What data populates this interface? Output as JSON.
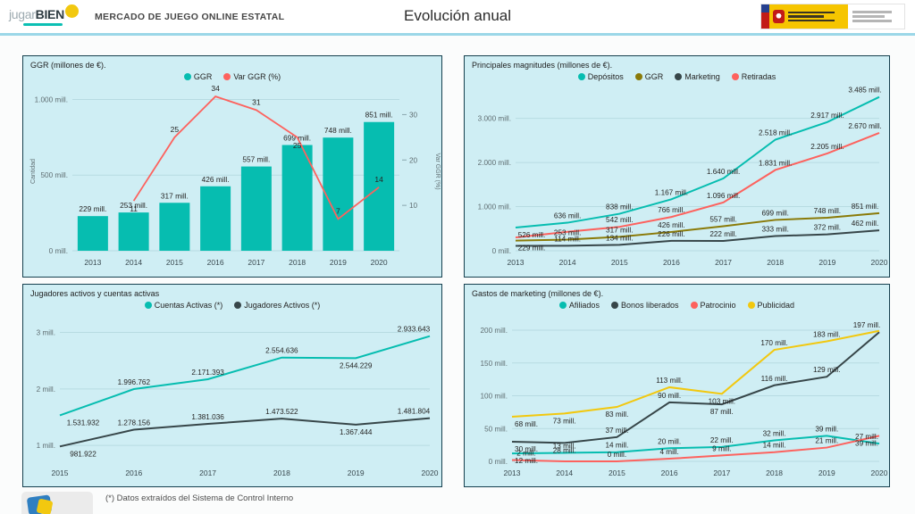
{
  "header": {
    "logo": {
      "part1": "jugar",
      "part2": "BIEN"
    },
    "title": "MERCADO DE JUEGO ONLINE ESTATAL",
    "page_title": "Evolución anual"
  },
  "footer": {
    "note": "(*) Datos extraídos del Sistema de Control Interno"
  },
  "colors": {
    "teal": "#06bdb0",
    "red": "#fd625e",
    "dark": "#374649",
    "yellow": "#f2c80f",
    "olive": "#8a7a08",
    "panel_bg": "#cfeef4",
    "grid": "#b7dbe2"
  },
  "chart_data": [
    {
      "type": "combo",
      "title": "GGR  (millones de €).",
      "categories": [
        "2013",
        "2014",
        "2015",
        "2016",
        "2017",
        "2018",
        "2019",
        "2020"
      ],
      "bar_series": {
        "name": "GGR",
        "color": "#06bdb0",
        "values": [
          229,
          253,
          317,
          426,
          557,
          699,
          748,
          851
        ],
        "labels": [
          "229 mill.",
          "253 mill.",
          "317 mill.",
          "426 mill.",
          "557 mill.",
          "699 mill.",
          "748 mill.",
          "851 mill."
        ]
      },
      "line_series": {
        "name": "Var GGR (%)",
        "color": "#fd625e",
        "values": [
          null,
          11,
          25,
          34,
          31,
          25,
          7,
          14
        ],
        "labels": [
          null,
          "11",
          "25",
          "34",
          "31",
          "25",
          "7",
          "14"
        ],
        "label_pos": [
          null,
          "b",
          "a",
          "a",
          "a",
          "b",
          "a",
          "a"
        ]
      },
      "y_left": {
        "title": "Cantidad",
        "min": 0,
        "max": 1050,
        "ticks": [
          {
            "v": 0,
            "label": "0 mill."
          },
          {
            "v": 500,
            "label": "500 mill."
          },
          {
            "v": 1000,
            "label": "1.000 mill."
          }
        ]
      },
      "y_right": {
        "title": "Var GGR (%)",
        "min": 0,
        "max": 35,
        "ticks": [
          {
            "v": 10,
            "label": "10"
          },
          {
            "v": 20,
            "label": "20"
          },
          {
            "v": 30,
            "label": "30"
          }
        ]
      }
    },
    {
      "type": "line",
      "title": "Principales magnitudes (millones de €).",
      "categories": [
        "2013",
        "2014",
        "2015",
        "2016",
        "2017",
        "2018",
        "2019",
        "2020"
      ],
      "series": [
        {
          "name": "Depósitos",
          "color": "#06bdb0",
          "values": [
            526,
            636,
            838,
            1167,
            1640,
            2518,
            2917,
            3485
          ],
          "labels": [
            "526 mill.",
            "636 mill.",
            "838 mill.",
            "1.167 mill.",
            "1.640 mill.",
            "2.518 mill.",
            "2.917 mill.",
            "3.485 mill."
          ],
          "label_pos": [
            "b",
            "a",
            "a",
            "a",
            "a",
            "a",
            "a",
            "a"
          ]
        },
        {
          "name": "GGR",
          "color": "#8a7a08",
          "values": [
            229,
            253,
            317,
            426,
            557,
            699,
            748,
            851
          ],
          "labels": [
            "229 mill.",
            "253 mill.",
            "317 mill.",
            "426 mill.",
            "557 mill.",
            "699 mill.",
            "748 mill.",
            "851 mill."
          ],
          "label_pos": [
            "b",
            "a",
            "a",
            "a",
            "a",
            "a",
            "a",
            "a"
          ]
        },
        {
          "name": "Marketing",
          "color": "#374649",
          "values": [
            112,
            114,
            134,
            226,
            222,
            333,
            372,
            462
          ],
          "labels": [
            null,
            "114 mill.",
            "134 mill.",
            "226 mill.",
            "222 mill.",
            "333 mill.",
            "372 mill.",
            "462 mill."
          ],
          "label_pos": [
            null,
            "a",
            "a",
            "a",
            "a",
            "a",
            "a",
            "a"
          ]
        },
        {
          "name": "Retiradas",
          "color": "#fd625e",
          "values": [
            300,
            430,
            542,
            766,
            1096,
            1831,
            2205,
            2670
          ],
          "labels": [
            null,
            null,
            "542 mill.",
            "766 mill.",
            "1.096 mill.",
            "1.831 mill.",
            "2.205 mill.",
            "2.670 mill."
          ],
          "label_pos": [
            null,
            null,
            "a",
            "a",
            "a",
            "a",
            "a",
            "a"
          ]
        }
      ],
      "y": {
        "min": 0,
        "max": 3600,
        "ticks": [
          {
            "v": 0,
            "label": "0 mill."
          },
          {
            "v": 1000,
            "label": "1.000 mill."
          },
          {
            "v": 2000,
            "label": "2.000 mill."
          },
          {
            "v": 3000,
            "label": "3.000 mill."
          }
        ]
      }
    },
    {
      "type": "line",
      "title": "Jugadores activos y cuentas activas",
      "categories": [
        "2015",
        "2016",
        "2017",
        "2018",
        "2019",
        "2020"
      ],
      "series": [
        {
          "name": "Cuentas Activas (*)",
          "color": "#06bdb0",
          "values": [
            1531932,
            1996762,
            2171393,
            2554636,
            2544229,
            2933643
          ],
          "labels": [
            "1.531.932",
            "1.996.762",
            "2.171.393",
            "2.554.636",
            "2.544.229",
            "2.933.643"
          ],
          "label_pos": [
            "b",
            "a",
            "a",
            "a",
            "b",
            "a"
          ]
        },
        {
          "name": "Jugadores Activos (*)",
          "color": "#374649",
          "values": [
            981922,
            1278156,
            1381036,
            1473522,
            1367444,
            1481804
          ],
          "labels": [
            "981.922",
            "1.278.156",
            "1.381.036",
            "1.473.522",
            "1.367.444",
            "1.481.804"
          ],
          "label_pos": [
            "b",
            "a",
            "a",
            "a",
            "b",
            "a"
          ]
        }
      ],
      "y": {
        "min": 750000,
        "max": 3150000,
        "ticks": [
          {
            "v": 1000000,
            "label": "1 mill."
          },
          {
            "v": 2000000,
            "label": "2 mill."
          },
          {
            "v": 3000000,
            "label": "3 mill."
          }
        ]
      }
    },
    {
      "type": "line",
      "title": "Gastos de marketing (millones de €).",
      "categories": [
        "2013",
        "2014",
        "2015",
        "2016",
        "2017",
        "2018",
        "2019",
        "2020"
      ],
      "series": [
        {
          "name": "Afiliados",
          "color": "#06bdb0",
          "values": [
            12,
            13,
            14,
            20,
            22,
            32,
            39,
            27
          ],
          "labels": [
            "12 mill.",
            "13 mill.",
            "14 mill.",
            "20 mill.",
            "22 mill.",
            "32 mill.",
            "39 mill.",
            "27 mill."
          ],
          "label_pos": [
            "b",
            "a",
            "a",
            "a",
            "a",
            "a",
            "a",
            "a"
          ]
        },
        {
          "name": "Bonos liberados",
          "color": "#374649",
          "values": [
            30,
            28,
            37,
            90,
            87,
            116,
            129,
            197
          ],
          "labels": [
            "30 mill.",
            "28 mill.",
            "37 mill.",
            "90 mill.",
            "87 mill.",
            "116 mill.",
            "129 mill.",
            "197 mill."
          ],
          "label_pos": [
            "b",
            "b",
            "a",
            "a",
            "b",
            "a",
            "a",
            "a"
          ]
        },
        {
          "name": "Patrocinio",
          "color": "#fd625e",
          "values": [
            2,
            0,
            0,
            4,
            9,
            14,
            21,
            39
          ],
          "labels": [
            "2 mill.",
            null,
            "0 mill.",
            "4 mill.",
            "9 mill.",
            "14 mill.",
            "21 mill.",
            "39 mill."
          ],
          "label_pos": [
            "a",
            null,
            "a",
            "a",
            "a",
            "a",
            "a",
            "b"
          ]
        },
        {
          "name": "Publicidad",
          "color": "#f2c80f",
          "values": [
            68,
            73,
            83,
            113,
            103,
            170,
            183,
            199
          ],
          "labels": [
            "68 mill.",
            "73 mill.",
            "83 mill.",
            "113 mill.",
            "103 mill.",
            "170 mill.",
            "183 mill.",
            null
          ],
          "label_pos": [
            "b",
            "b",
            "b",
            "a",
            "b",
            "a",
            "a",
            null
          ]
        }
      ],
      "y": {
        "min": 0,
        "max": 215,
        "ticks": [
          {
            "v": 0,
            "label": "0 mill."
          },
          {
            "v": 50,
            "label": "50 mill."
          },
          {
            "v": 100,
            "label": "100 mill."
          },
          {
            "v": 150,
            "label": "150 mill."
          },
          {
            "v": 200,
            "label": "200 mill."
          }
        ]
      }
    }
  ]
}
